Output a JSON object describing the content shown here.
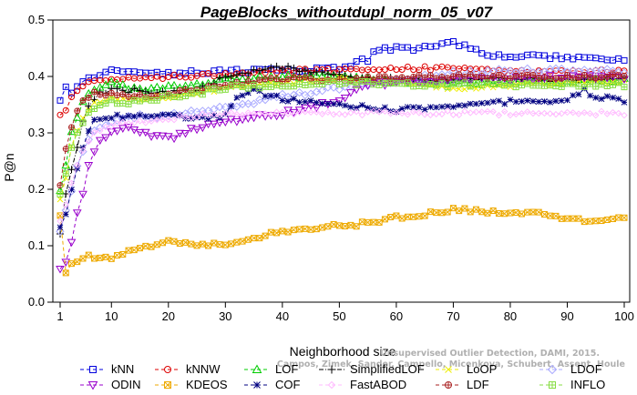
{
  "chart_data": {
    "type": "line",
    "title": "PageBlocks_withoutdupl_norm_05_v07",
    "xlabel": "Neighborhood size",
    "ylabel": "P@n",
    "xlim": [
      1,
      100
    ],
    "ylim": [
      0,
      0.5
    ],
    "xticks": [
      1,
      10,
      20,
      30,
      40,
      50,
      60,
      70,
      80,
      90,
      100
    ],
    "yticks": [
      "0.0",
      "0.1",
      "0.2",
      "0.3",
      "0.4",
      "0.5"
    ],
    "legend_position": "bottom",
    "credit_lines": [
      "Unsupervised Outlier Detection, DAMI, 2015.",
      "Campos, Zimek, Sander, Campello, Micenkova, Schubert, Assent, Houle"
    ],
    "series": [
      {
        "name": "kNN",
        "color": "#0000dd",
        "marker": "square",
        "line": "dashed",
        "anchors": [
          [
            1,
            0.355
          ],
          [
            2,
            0.385
          ],
          [
            3,
            0.37
          ],
          [
            4,
            0.385
          ],
          [
            6,
            0.395
          ],
          [
            8,
            0.405
          ],
          [
            10,
            0.415
          ],
          [
            15,
            0.405
          ],
          [
            20,
            0.405
          ],
          [
            30,
            0.41
          ],
          [
            40,
            0.41
          ],
          [
            50,
            0.415
          ],
          [
            53,
            0.425
          ],
          [
            55,
            0.43
          ],
          [
            56,
            0.445
          ],
          [
            60,
            0.45
          ],
          [
            65,
            0.45
          ],
          [
            69,
            0.46
          ],
          [
            72,
            0.455
          ],
          [
            75,
            0.44
          ],
          [
            80,
            0.435
          ],
          [
            85,
            0.435
          ],
          [
            90,
            0.435
          ],
          [
            95,
            0.43
          ],
          [
            100,
            0.43
          ]
        ]
      },
      {
        "name": "kNNW",
        "color": "#dd0000",
        "marker": "circle",
        "line": "dashed",
        "anchors": [
          [
            1,
            0.335
          ],
          [
            2,
            0.34
          ],
          [
            3,
            0.365
          ],
          [
            5,
            0.385
          ],
          [
            7,
            0.39
          ],
          [
            10,
            0.395
          ],
          [
            20,
            0.4
          ],
          [
            30,
            0.405
          ],
          [
            40,
            0.41
          ],
          [
            50,
            0.41
          ],
          [
            55,
            0.415
          ],
          [
            60,
            0.415
          ],
          [
            70,
            0.415
          ],
          [
            80,
            0.41
          ],
          [
            90,
            0.41
          ],
          [
            100,
            0.41
          ]
        ]
      },
      {
        "name": "LOF",
        "color": "#00cc00",
        "marker": "triangle",
        "line": "dashed",
        "anchors": [
          [
            1,
            0.195
          ],
          [
            2,
            0.24
          ],
          [
            3,
            0.3
          ],
          [
            4,
            0.33
          ],
          [
            5,
            0.355
          ],
          [
            6,
            0.37
          ],
          [
            7,
            0.375
          ],
          [
            10,
            0.39
          ],
          [
            15,
            0.375
          ],
          [
            20,
            0.38
          ],
          [
            25,
            0.385
          ],
          [
            30,
            0.395
          ],
          [
            40,
            0.4
          ],
          [
            50,
            0.4
          ],
          [
            60,
            0.39
          ],
          [
            70,
            0.39
          ],
          [
            80,
            0.39
          ],
          [
            90,
            0.39
          ],
          [
            100,
            0.395
          ]
        ]
      },
      {
        "name": "SimplifiedLOF",
        "color": "#000000",
        "marker": "plus",
        "line": "dashdot",
        "anchors": [
          [
            1,
            0.12
          ],
          [
            2,
            0.19
          ],
          [
            3,
            0.235
          ],
          [
            4,
            0.275
          ],
          [
            5,
            0.32
          ],
          [
            6,
            0.35
          ],
          [
            8,
            0.37
          ],
          [
            10,
            0.375
          ],
          [
            15,
            0.375
          ],
          [
            20,
            0.37
          ],
          [
            25,
            0.375
          ],
          [
            30,
            0.4
          ],
          [
            35,
            0.41
          ],
          [
            40,
            0.415
          ],
          [
            45,
            0.41
          ],
          [
            50,
            0.4
          ],
          [
            55,
            0.395
          ],
          [
            60,
            0.395
          ],
          [
            70,
            0.395
          ],
          [
            80,
            0.395
          ],
          [
            90,
            0.395
          ],
          [
            100,
            0.395
          ]
        ]
      },
      {
        "name": "LoOP",
        "color": "#eeee00",
        "marker": "x",
        "line": "dashed",
        "anchors": [
          [
            1,
            0.18
          ],
          [
            2,
            0.22
          ],
          [
            3,
            0.28
          ],
          [
            5,
            0.33
          ],
          [
            7,
            0.35
          ],
          [
            10,
            0.36
          ],
          [
            15,
            0.36
          ],
          [
            20,
            0.365
          ],
          [
            25,
            0.37
          ],
          [
            30,
            0.38
          ],
          [
            40,
            0.39
          ],
          [
            50,
            0.395
          ],
          [
            60,
            0.39
          ],
          [
            70,
            0.38
          ],
          [
            80,
            0.385
          ],
          [
            90,
            0.39
          ],
          [
            100,
            0.39
          ]
        ]
      },
      {
        "name": "LDOF",
        "color": "#aaaaff",
        "marker": "diamond",
        "line": "dashed",
        "anchors": [
          [
            1,
            0.125
          ],
          [
            2,
            0.16
          ],
          [
            3,
            0.2
          ],
          [
            4,
            0.24
          ],
          [
            5,
            0.27
          ],
          [
            7,
            0.3
          ],
          [
            10,
            0.32
          ],
          [
            15,
            0.33
          ],
          [
            20,
            0.33
          ],
          [
            30,
            0.345
          ],
          [
            40,
            0.365
          ],
          [
            50,
            0.38
          ],
          [
            60,
            0.395
          ],
          [
            70,
            0.405
          ],
          [
            80,
            0.41
          ],
          [
            90,
            0.41
          ],
          [
            100,
            0.41
          ]
        ]
      },
      {
        "name": "ODIN",
        "color": "#9900cc",
        "marker": "triangle-down",
        "line": "dashed",
        "anchors": [
          [
            1,
            0.055
          ],
          [
            2,
            0.07
          ],
          [
            3,
            0.105
          ],
          [
            4,
            0.155
          ],
          [
            5,
            0.195
          ],
          [
            6,
            0.245
          ],
          [
            8,
            0.285
          ],
          [
            10,
            0.305
          ],
          [
            12,
            0.31
          ],
          [
            15,
            0.3
          ],
          [
            20,
            0.29
          ],
          [
            25,
            0.31
          ],
          [
            30,
            0.32
          ],
          [
            35,
            0.33
          ],
          [
            40,
            0.335
          ],
          [
            45,
            0.345
          ],
          [
            50,
            0.36
          ],
          [
            55,
            0.385
          ],
          [
            60,
            0.39
          ],
          [
            70,
            0.395
          ],
          [
            80,
            0.395
          ],
          [
            90,
            0.4
          ],
          [
            100,
            0.395
          ]
        ]
      },
      {
        "name": "KDEOS",
        "color": "#eeaa00",
        "marker": "square-x",
        "line": "dashed",
        "anchors": [
          [
            1,
            0.15
          ],
          [
            2,
            0.05
          ],
          [
            3,
            0.07
          ],
          [
            5,
            0.08
          ],
          [
            10,
            0.08
          ],
          [
            15,
            0.095
          ],
          [
            20,
            0.11
          ],
          [
            25,
            0.1
          ],
          [
            30,
            0.105
          ],
          [
            35,
            0.115
          ],
          [
            40,
            0.125
          ],
          [
            45,
            0.13
          ],
          [
            50,
            0.135
          ],
          [
            55,
            0.14
          ],
          [
            60,
            0.15
          ],
          [
            65,
            0.155
          ],
          [
            70,
            0.165
          ],
          [
            75,
            0.16
          ],
          [
            80,
            0.16
          ],
          [
            85,
            0.16
          ],
          [
            88,
            0.155
          ],
          [
            90,
            0.145
          ],
          [
            95,
            0.145
          ],
          [
            100,
            0.15
          ]
        ]
      },
      {
        "name": "COF",
        "color": "#000080",
        "marker": "star",
        "line": "dashed",
        "anchors": [
          [
            1,
            0.13
          ],
          [
            2,
            0.155
          ],
          [
            3,
            0.2
          ],
          [
            4,
            0.235
          ],
          [
            5,
            0.27
          ],
          [
            6,
            0.3
          ],
          [
            7,
            0.32
          ],
          [
            10,
            0.33
          ],
          [
            15,
            0.33
          ],
          [
            20,
            0.33
          ],
          [
            25,
            0.325
          ],
          [
            30,
            0.33
          ],
          [
            32,
            0.365
          ],
          [
            35,
            0.375
          ],
          [
            40,
            0.36
          ],
          [
            45,
            0.355
          ],
          [
            50,
            0.35
          ],
          [
            55,
            0.345
          ],
          [
            60,
            0.34
          ],
          [
            65,
            0.345
          ],
          [
            70,
            0.345
          ],
          [
            75,
            0.35
          ],
          [
            80,
            0.355
          ],
          [
            85,
            0.355
          ],
          [
            90,
            0.36
          ],
          [
            93,
            0.375
          ],
          [
            95,
            0.365
          ],
          [
            100,
            0.355
          ]
        ]
      },
      {
        "name": "FastABOD",
        "color": "#ffbbff",
        "marker": "diamond-small",
        "line": "dashed",
        "anchors": [
          [
            1,
            0.14
          ],
          [
            2,
            0.17
          ],
          [
            3,
            0.21
          ],
          [
            5,
            0.27
          ],
          [
            7,
            0.3
          ],
          [
            10,
            0.315
          ],
          [
            15,
            0.32
          ],
          [
            20,
            0.325
          ],
          [
            25,
            0.33
          ],
          [
            30,
            0.335
          ],
          [
            40,
            0.335
          ],
          [
            50,
            0.335
          ],
          [
            60,
            0.335
          ],
          [
            70,
            0.335
          ],
          [
            80,
            0.335
          ],
          [
            90,
            0.335
          ],
          [
            100,
            0.335
          ]
        ]
      },
      {
        "name": "LDF",
        "color": "#aa2222",
        "marker": "circle-plus",
        "line": "dashed",
        "anchors": [
          [
            1,
            0.205
          ],
          [
            2,
            0.275
          ],
          [
            3,
            0.31
          ],
          [
            4,
            0.34
          ],
          [
            5,
            0.36
          ],
          [
            7,
            0.37
          ],
          [
            10,
            0.37
          ],
          [
            15,
            0.365
          ],
          [
            20,
            0.37
          ],
          [
            25,
            0.375
          ],
          [
            30,
            0.385
          ],
          [
            40,
            0.395
          ],
          [
            50,
            0.395
          ],
          [
            60,
            0.4
          ],
          [
            70,
            0.4
          ],
          [
            80,
            0.4
          ],
          [
            90,
            0.4
          ],
          [
            100,
            0.4
          ]
        ]
      },
      {
        "name": "INFLO",
        "color": "#88dd44",
        "marker": "square-cross",
        "line": "dashed",
        "anchors": [
          [
            1,
            0.19
          ],
          [
            2,
            0.225
          ],
          [
            3,
            0.275
          ],
          [
            5,
            0.32
          ],
          [
            7,
            0.345
          ],
          [
            10,
            0.355
          ],
          [
            15,
            0.355
          ],
          [
            20,
            0.365
          ],
          [
            25,
            0.37
          ],
          [
            30,
            0.38
          ],
          [
            40,
            0.385
          ],
          [
            50,
            0.39
          ],
          [
            60,
            0.385
          ],
          [
            70,
            0.385
          ],
          [
            80,
            0.385
          ],
          [
            90,
            0.385
          ],
          [
            100,
            0.385
          ]
        ]
      }
    ]
  }
}
